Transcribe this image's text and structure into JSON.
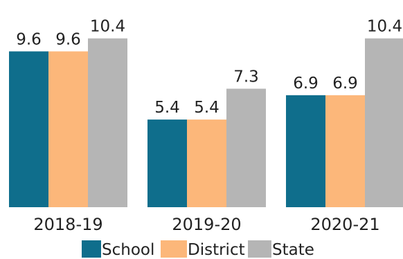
{
  "chart_data": {
    "type": "bar",
    "title": "",
    "xlabel": "",
    "ylabel": "",
    "categories": [
      "2018-19",
      "2019-20",
      "2020-21"
    ],
    "series": [
      {
        "name": "School",
        "values": [
          9.6,
          5.4,
          6.9
        ],
        "color": "#0f6e8c"
      },
      {
        "name": "District",
        "values": [
          9.6,
          5.4,
          6.9
        ],
        "color": "#fcb77a"
      },
      {
        "name": "State",
        "values": [
          10.4,
          7.3,
          10.4
        ],
        "color": "#b5b5b5"
      }
    ],
    "data_labels": [
      [
        "9.6",
        "9.6",
        "10.4"
      ],
      [
        "5.4",
        "5.4",
        "7.3"
      ],
      [
        "6.9",
        "6.9",
        "10.4"
      ]
    ],
    "ylim": [
      0,
      10.4
    ],
    "grid": false,
    "legend": "bottom"
  }
}
